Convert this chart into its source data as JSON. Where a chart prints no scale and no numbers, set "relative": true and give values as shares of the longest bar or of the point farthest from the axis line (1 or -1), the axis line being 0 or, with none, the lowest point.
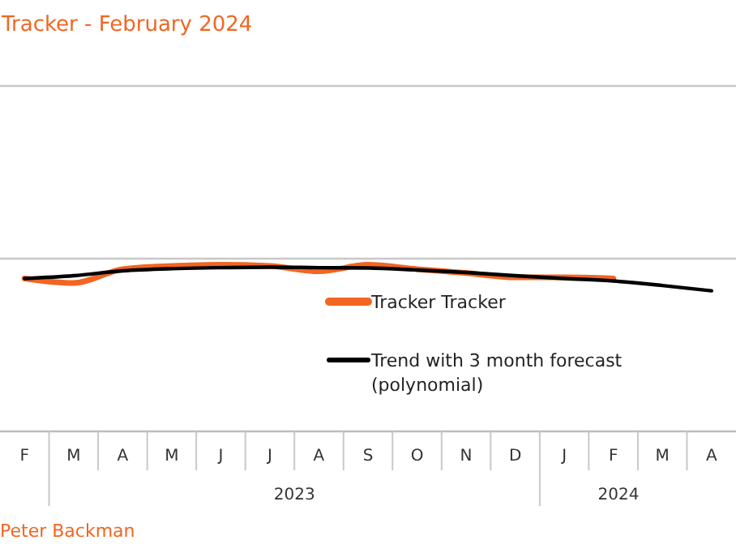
{
  "chart_data": {
    "type": "line",
    "title": "Tracker - February 2024",
    "relative": true,
    "legend": "top right",
    "categories": [
      "F",
      "M",
      "A",
      "M",
      "J",
      "J",
      "A",
      "S",
      "O",
      "N",
      "D",
      "J",
      "F",
      "M",
      "A"
    ],
    "series": [
      {
        "name": "Tracker Tracker",
        "color": "#f26522",
        "values": [
          0.918,
          0.891,
          0.974,
          0.993,
          1,
          0.993,
          0.961,
          1,
          0.974,
          0.951,
          0.925,
          0.925,
          0.918,
          null,
          null
        ]
      },
      {
        "name": "Trend with 3 month forecast (polynomial)",
        "color": "#000000",
        "values": [
          0.918,
          0.935,
          0.964,
          0.977,
          0.983,
          0.986,
          0.983,
          0.981,
          0.969,
          0.954,
          0.935,
          0.918,
          0.903,
          0.876,
          0.844
        ]
      }
    ],
    "annotations": [
      "2023",
      "2024",
      "Peter Backman"
    ]
  }
}
